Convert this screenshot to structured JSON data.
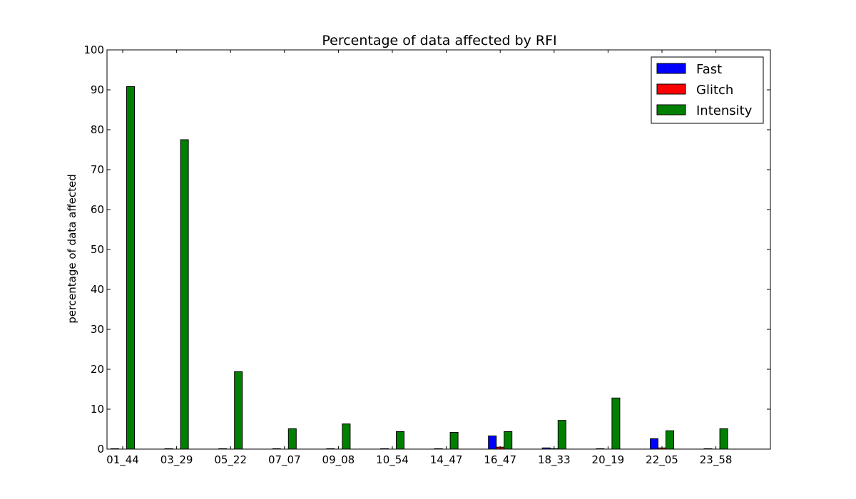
{
  "chart_data": {
    "type": "bar",
    "title": "Percentage of data affected by RFI",
    "xlabel": "",
    "ylabel": "percentage of data affected",
    "ylim": [
      0,
      100
    ],
    "yticks": [
      0,
      10,
      20,
      30,
      40,
      50,
      60,
      70,
      80,
      90,
      100
    ],
    "grid": false,
    "legend_position": "top-right",
    "categories": [
      "01_44",
      "03_29",
      "05_22",
      "07_07",
      "09_08",
      "10_54",
      "14_47",
      "16_47",
      "18_33",
      "20_19",
      "22_05",
      "23_58"
    ],
    "series": [
      {
        "name": "Fast",
        "color": "#0000ff",
        "values": [
          0.1,
          0.1,
          0.1,
          0.1,
          0.1,
          0.1,
          0.1,
          3.3,
          0.3,
          0.1,
          2.6,
          0.1
        ]
      },
      {
        "name": "Glitch",
        "color": "#ff0000",
        "values": [
          0.0,
          0.0,
          0.0,
          0.0,
          0.0,
          0.0,
          0.0,
          0.5,
          0.1,
          0.0,
          0.3,
          0.0
        ]
      },
      {
        "name": "Intensity",
        "color": "#008000",
        "values": [
          90.8,
          77.5,
          19.4,
          5.1,
          6.3,
          4.4,
          4.2,
          4.4,
          7.2,
          12.8,
          4.6,
          5.1
        ]
      }
    ]
  }
}
